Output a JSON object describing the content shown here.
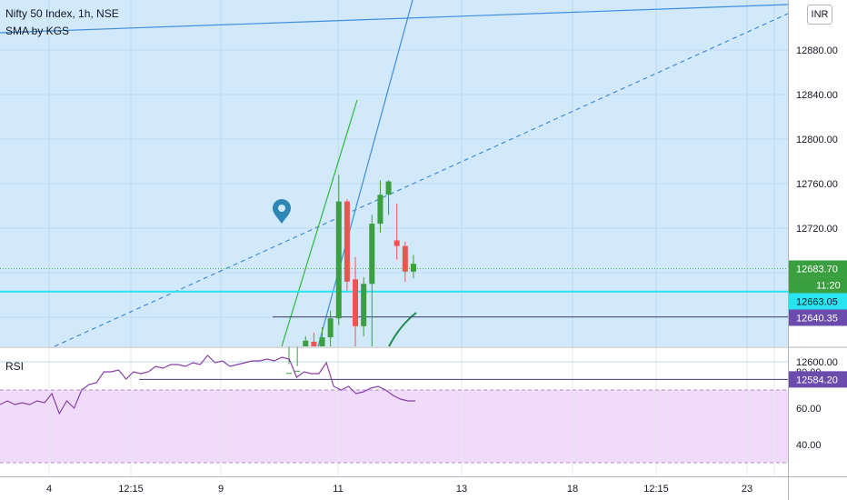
{
  "header": {
    "symbol": "Nifty 50 Index, 1h, NSE",
    "indicator": "SMA by KGS",
    "currency": "INR",
    "rsi_label": "RSI"
  },
  "colors": {
    "main_bg": "#d2e9fb",
    "rsi_band_bg": "#f0dcfa",
    "up": "#3a9f3e",
    "down": "#ef5350",
    "trend_blue": "#3d8edb",
    "cyan_line": "#29e3f0",
    "rsi_line": "#8a3fa8",
    "level_purple": "#6b4bab"
  },
  "chart_data": [
    {
      "type": "candlestick",
      "title": "",
      "y_ticks": [
        "12880.00",
        "12840.00",
        "12800.00",
        "12760.00",
        "12720.00",
        "12600.00"
      ],
      "ylim": [
        12570,
        12910
      ],
      "x_ticks": [
        "4",
        "12:15",
        "9",
        "11",
        "13",
        "18",
        "12:15",
        "23"
      ],
      "candles": [
        {
          "o": 12570,
          "h": 12598,
          "l": 12570,
          "c": 12590
        },
        {
          "o": 12583,
          "h": 12596,
          "l": 12570,
          "c": 12592
        },
        {
          "o": 12578,
          "h": 12623,
          "l": 12570,
          "c": 12619
        },
        {
          "o": 12618,
          "h": 12626,
          "l": 12572,
          "c": 12574
        },
        {
          "o": 12580,
          "h": 12631,
          "l": 12570,
          "c": 12622
        },
        {
          "o": 12622,
          "h": 12646,
          "l": 12612,
          "c": 12639
        },
        {
          "o": 12639,
          "h": 12768,
          "l": 12633,
          "c": 12744
        },
        {
          "o": 12744,
          "h": 12746,
          "l": 12664,
          "c": 12672
        },
        {
          "o": 12674,
          "h": 12694,
          "l": 12588,
          "c": 12632
        },
        {
          "o": 12632,
          "h": 12676,
          "l": 12623,
          "c": 12670
        },
        {
          "o": 12670,
          "h": 12732,
          "l": 12582,
          "c": 12724
        },
        {
          "o": 12724,
          "h": 12763,
          "l": 12716,
          "c": 12750
        },
        {
          "o": 12750,
          "h": 12763,
          "l": 12732,
          "c": 12762
        },
        {
          "o": 12709,
          "h": 12742,
          "l": 12692,
          "c": 12704
        },
        {
          "o": 12704,
          "h": 12708,
          "l": 12672,
          "c": 12681
        },
        {
          "o": 12681,
          "h": 12696,
          "l": 12675,
          "c": 12688
        }
      ],
      "price_labels": [
        {
          "text": "12683.70",
          "value": 12683.7,
          "style": "green"
        },
        {
          "text": "11:20",
          "value": 12671,
          "style": "green"
        },
        {
          "text": "12663.05",
          "value": 12663.05,
          "style": "cyan"
        },
        {
          "text": "12640.35",
          "value": 12640.35,
          "style": "purple"
        },
        {
          "text": "12584.20",
          "value": 12584.2,
          "style": "purple"
        }
      ],
      "horizontal_levels": [
        {
          "value": 12683.7,
          "style": "dotted-green"
        },
        {
          "value": 12663.05,
          "style": "cyan"
        },
        {
          "value": 12640.35,
          "style": "thin-dark"
        },
        {
          "value": 12584.2,
          "style": "thin-dark"
        }
      ]
    },
    {
      "type": "line",
      "title": "RSI",
      "y_ticks": [
        "80.00",
        "60.00",
        "40.00"
      ],
      "ylim": [
        26,
        95
      ],
      "band": [
        30,
        70
      ],
      "values": [
        62,
        64,
        62,
        63,
        62,
        64,
        63,
        68,
        57,
        64,
        60,
        70,
        73,
        74,
        80,
        80,
        81,
        76,
        80,
        79,
        80,
        83,
        82,
        84,
        84,
        83,
        85,
        84,
        89,
        85,
        86,
        83,
        84,
        85,
        86,
        86,
        87,
        86,
        88,
        87,
        77,
        80,
        79,
        79,
        85,
        72,
        70,
        72,
        68,
        69,
        71,
        72,
        70,
        67,
        65,
        64,
        64
      ]
    }
  ]
}
